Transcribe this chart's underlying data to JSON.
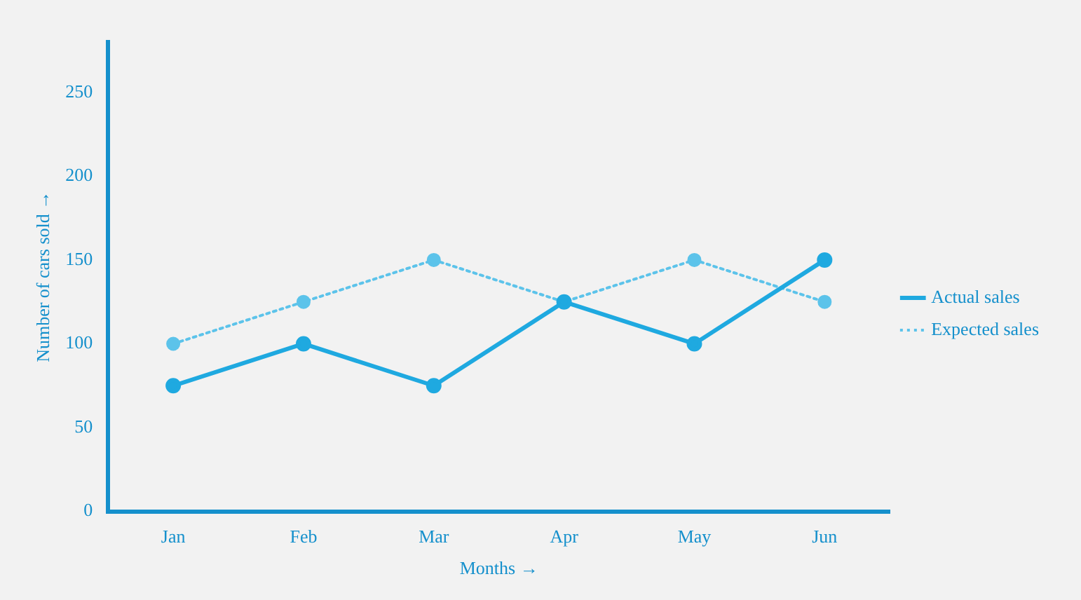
{
  "chart_data": {
    "type": "line",
    "xlabel": "Months →",
    "ylabel": "Number of cars sold →",
    "categories": [
      "Jan",
      "Feb",
      "Mar",
      "Apr",
      "May",
      "Jun"
    ],
    "series": [
      {
        "name": "Actual sales",
        "color": "#1fa9e0",
        "values": [
          75,
          100,
          75,
          125,
          100,
          150
        ],
        "line_style": "solid"
      },
      {
        "name": "Expected sales",
        "color": "#5cc3ea",
        "values": [
          100,
          125,
          150,
          125,
          150,
          125
        ],
        "line_style": "dotted"
      }
    ],
    "ylim": [
      0,
      280
    ],
    "yticks": [
      0,
      50,
      100,
      150,
      200,
      250
    ],
    "grid": false,
    "legend": "right",
    "marker": "circle"
  }
}
